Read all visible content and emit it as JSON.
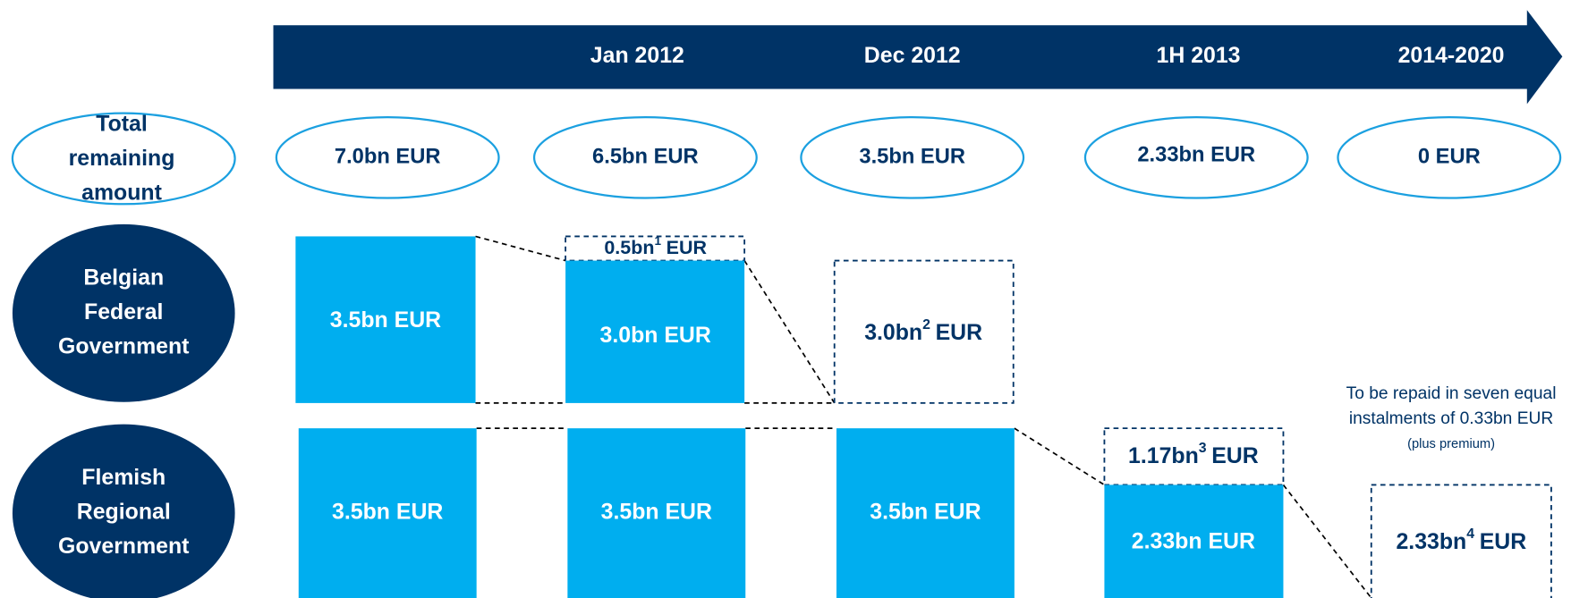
{
  "timeline": [
    "Jan 2012",
    "Dec 2012",
    "1H 2013",
    "2014-2020"
  ],
  "total": {
    "label": [
      "Total",
      "remaining",
      "amount"
    ],
    "amounts": [
      "7.0bn EUR",
      "6.5bn EUR",
      "3.5bn EUR",
      "2.33bn EUR",
      "0 EUR"
    ]
  },
  "rows": [
    {
      "label": [
        "Belgian",
        "Federal",
        "Government"
      ],
      "boxes": [
        {
          "main": "3.5bn EUR"
        },
        {
          "main": "0.5bn",
          "sup": "1",
          "unit": "EUR"
        },
        {
          "main": "3.0bn EUR"
        },
        {
          "main": "3.0bn",
          "sup": "2",
          "unit": "EUR"
        }
      ]
    },
    {
      "label": [
        "Flemish",
        "Regional",
        "Government"
      ],
      "boxes": [
        {
          "main": "3.5bn EUR"
        },
        {
          "main": "3.5bn EUR"
        },
        {
          "main": "3.5bn EUR"
        },
        {
          "main": "1.17bn",
          "sup": "3",
          "unit": "EUR"
        },
        {
          "main": "2.33bn EUR"
        },
        {
          "main": "2.33bn",
          "sup": "4",
          "unit": "EUR"
        }
      ]
    }
  ],
  "note": {
    "lines": [
      "To be repaid in seven equal",
      "instalments of 0.33bn EUR",
      "(plus premium)"
    ]
  }
}
